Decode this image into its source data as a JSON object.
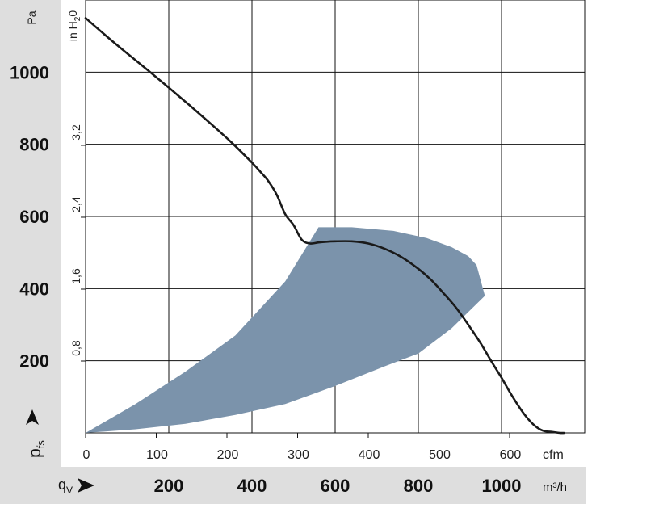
{
  "chart_data": {
    "type": "line",
    "title": "",
    "y_axis": {
      "unit": "Pa",
      "range": [
        0,
        1200
      ],
      "ticks": [
        200,
        400,
        600,
        800,
        1000
      ],
      "tick_labels": [
        "200",
        "400",
        "600",
        "800",
        "1000"
      ]
    },
    "y2_axis": {
      "unit": "in H₂0",
      "unit_base": "in H",
      "unit_sub": "2",
      "unit_tail": "0",
      "tick_labels": [
        "0,8",
        "1,6",
        "2,4",
        "3,2"
      ]
    },
    "x_axis_cfm": {
      "unit": "cfm",
      "ticks": [
        0,
        100,
        200,
        300,
        400,
        500,
        600
      ],
      "tick_labels": [
        "0",
        "100",
        "200",
        "300",
        "400",
        "500",
        "600"
      ]
    },
    "x_axis_m3h": {
      "unit": "m³/h",
      "range": [
        0,
        1200
      ],
      "ticks": [
        200,
        400,
        600,
        800,
        1000
      ],
      "tick_labels": [
        "200",
        "400",
        "600",
        "800",
        "1000"
      ]
    },
    "y_symbol": {
      "main": "p",
      "sub": "fs"
    },
    "x_symbol": {
      "main": "q",
      "sub": "V"
    },
    "grid": true,
    "series": [
      {
        "color": "#1a1a1a",
        "x": [
          0,
          50,
          100,
          150,
          200,
          250,
          300,
          350,
          400,
          420,
          440,
          460,
          480,
          500,
          520,
          540,
          560,
          580,
          600,
          640,
          680,
          720,
          760,
          800,
          830,
          860,
          890,
          920,
          950,
          980,
          1000,
          1020,
          1040,
          1060,
          1080,
          1100,
          1120,
          1140,
          1150
        ],
        "y": [
          1150,
          1100,
          1052,
          1005,
          957,
          908,
          858,
          806,
          749,
          724,
          697,
          659,
          606,
          576,
          535,
          525,
          528,
          530,
          531,
          531,
          525,
          510,
          487,
          455,
          425,
          388,
          348,
          300,
          248,
          190,
          153,
          113,
          76,
          44,
          20,
          6,
          3,
          0,
          0
        ]
      }
    ],
    "shaded_region": {
      "color": "#7b93ab",
      "upper_x": [
        0,
        120,
        240,
        360,
        480,
        560,
        600,
        640
      ],
      "upper_y": [
        0,
        80,
        170,
        270,
        420,
        570,
        570,
        570
      ],
      "edge_x": [
        640,
        740,
        820,
        880,
        920,
        940,
        960
      ],
      "edge_y": [
        570,
        560,
        540,
        515,
        490,
        465,
        380
      ],
      "lower_x": [
        960,
        880,
        800,
        720,
        600,
        480,
        360,
        240,
        120,
        0
      ],
      "lower_y": [
        380,
        290,
        220,
        185,
        130,
        80,
        50,
        25,
        10,
        0
      ]
    }
  }
}
